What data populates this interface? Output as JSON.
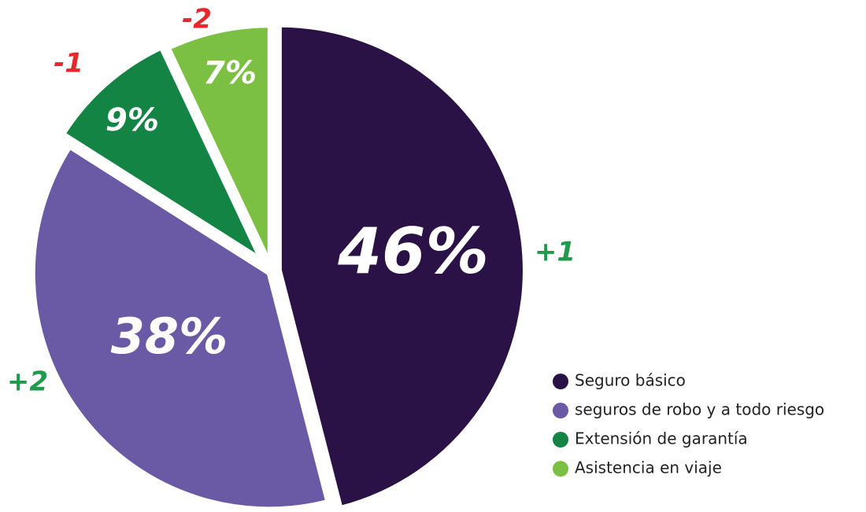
{
  "chart_data": {
    "type": "pie",
    "categories": [
      "Seguro básico",
      "seguros de robo y a todo riesgo",
      "Extensión de garantía",
      "Asistencia en viaje"
    ],
    "values": [
      46,
      38,
      9,
      7
    ],
    "value_labels": [
      "46%",
      "38%",
      "9%",
      "7%"
    ],
    "colors": [
      "#2a1247",
      "#6a5aa6",
      "#148444",
      "#7bc043"
    ],
    "annotations": [
      "+1",
      "+2",
      "-1",
      "-2"
    ],
    "annotation_colors": [
      "#1f9a4b",
      "#1f9a4b",
      "#e8262c",
      "#e8262c"
    ],
    "legend": "bottom-right"
  }
}
